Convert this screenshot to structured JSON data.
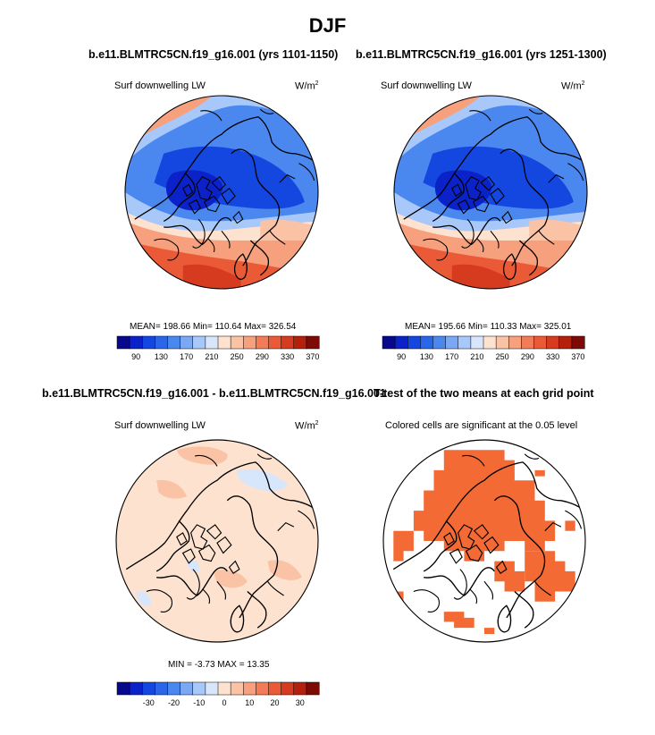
{
  "main_title": "DJF",
  "colors": {
    "abs_scale": [
      "#08088c",
      "#0a22c8",
      "#1446e0",
      "#2a66e8",
      "#4a88ef",
      "#7aa8f5",
      "#a8c8fa",
      "#d8e6fb",
      "#fde3cf",
      "#fbc3a6",
      "#f7a07e",
      "#f27c58",
      "#eb5a37",
      "#d63a1f",
      "#b3200e",
      "#7d0a05"
    ],
    "diff_scale": [
      "#08088c",
      "#0a22c8",
      "#1446e0",
      "#2a66e8",
      "#4a88ef",
      "#7aa8f5",
      "#a8c8fa",
      "#d8e6fb",
      "#fde3cf",
      "#fbc3a6",
      "#f7a07e",
      "#f27c58",
      "#eb5a37",
      "#d63a1f",
      "#b3200e",
      "#7d0a05"
    ],
    "significant": "#f46a35"
  },
  "panels": {
    "top_left": {
      "title": "b.e11.BLMTRC5CN.f19_g16.001 (yrs 1101-1150)",
      "field_label": "Surf downwelling LW",
      "units_base": "W/m",
      "units_exp": "2",
      "stats": "MEAN= 198.66  Min= 110.64  Max= 326.54",
      "ticks": [
        "90",
        "130",
        "170",
        "210",
        "250",
        "290",
        "330",
        "370"
      ]
    },
    "top_right": {
      "title": "b.e11.BLMTRC5CN.f19_g16.001 (yrs 1251-1300)",
      "field_label": "Surf downwelling LW",
      "units_base": "W/m",
      "units_exp": "2",
      "stats": "MEAN= 195.66  Min= 110.33  Max= 325.01",
      "ticks": [
        "90",
        "130",
        "170",
        "210",
        "250",
        "290",
        "330",
        "370"
      ]
    },
    "bottom_left": {
      "title": "b.e11.BLMTRC5CN.f19_g16.001 - b.e11.BLMTRC5CN.f19_g16.001",
      "field_label": "Surf downwelling LW",
      "units_base": "W/m",
      "units_exp": "2",
      "stats": "MIN = -3.73 MAX = 13.35",
      "ticks": [
        "-30",
        "-20",
        "-10",
        "0",
        "10",
        "20",
        "30"
      ]
    },
    "bottom_right": {
      "title": "T-test of the two means at each grid point",
      "field_label": "Colored cells are significant at the 0.05 level"
    }
  }
}
